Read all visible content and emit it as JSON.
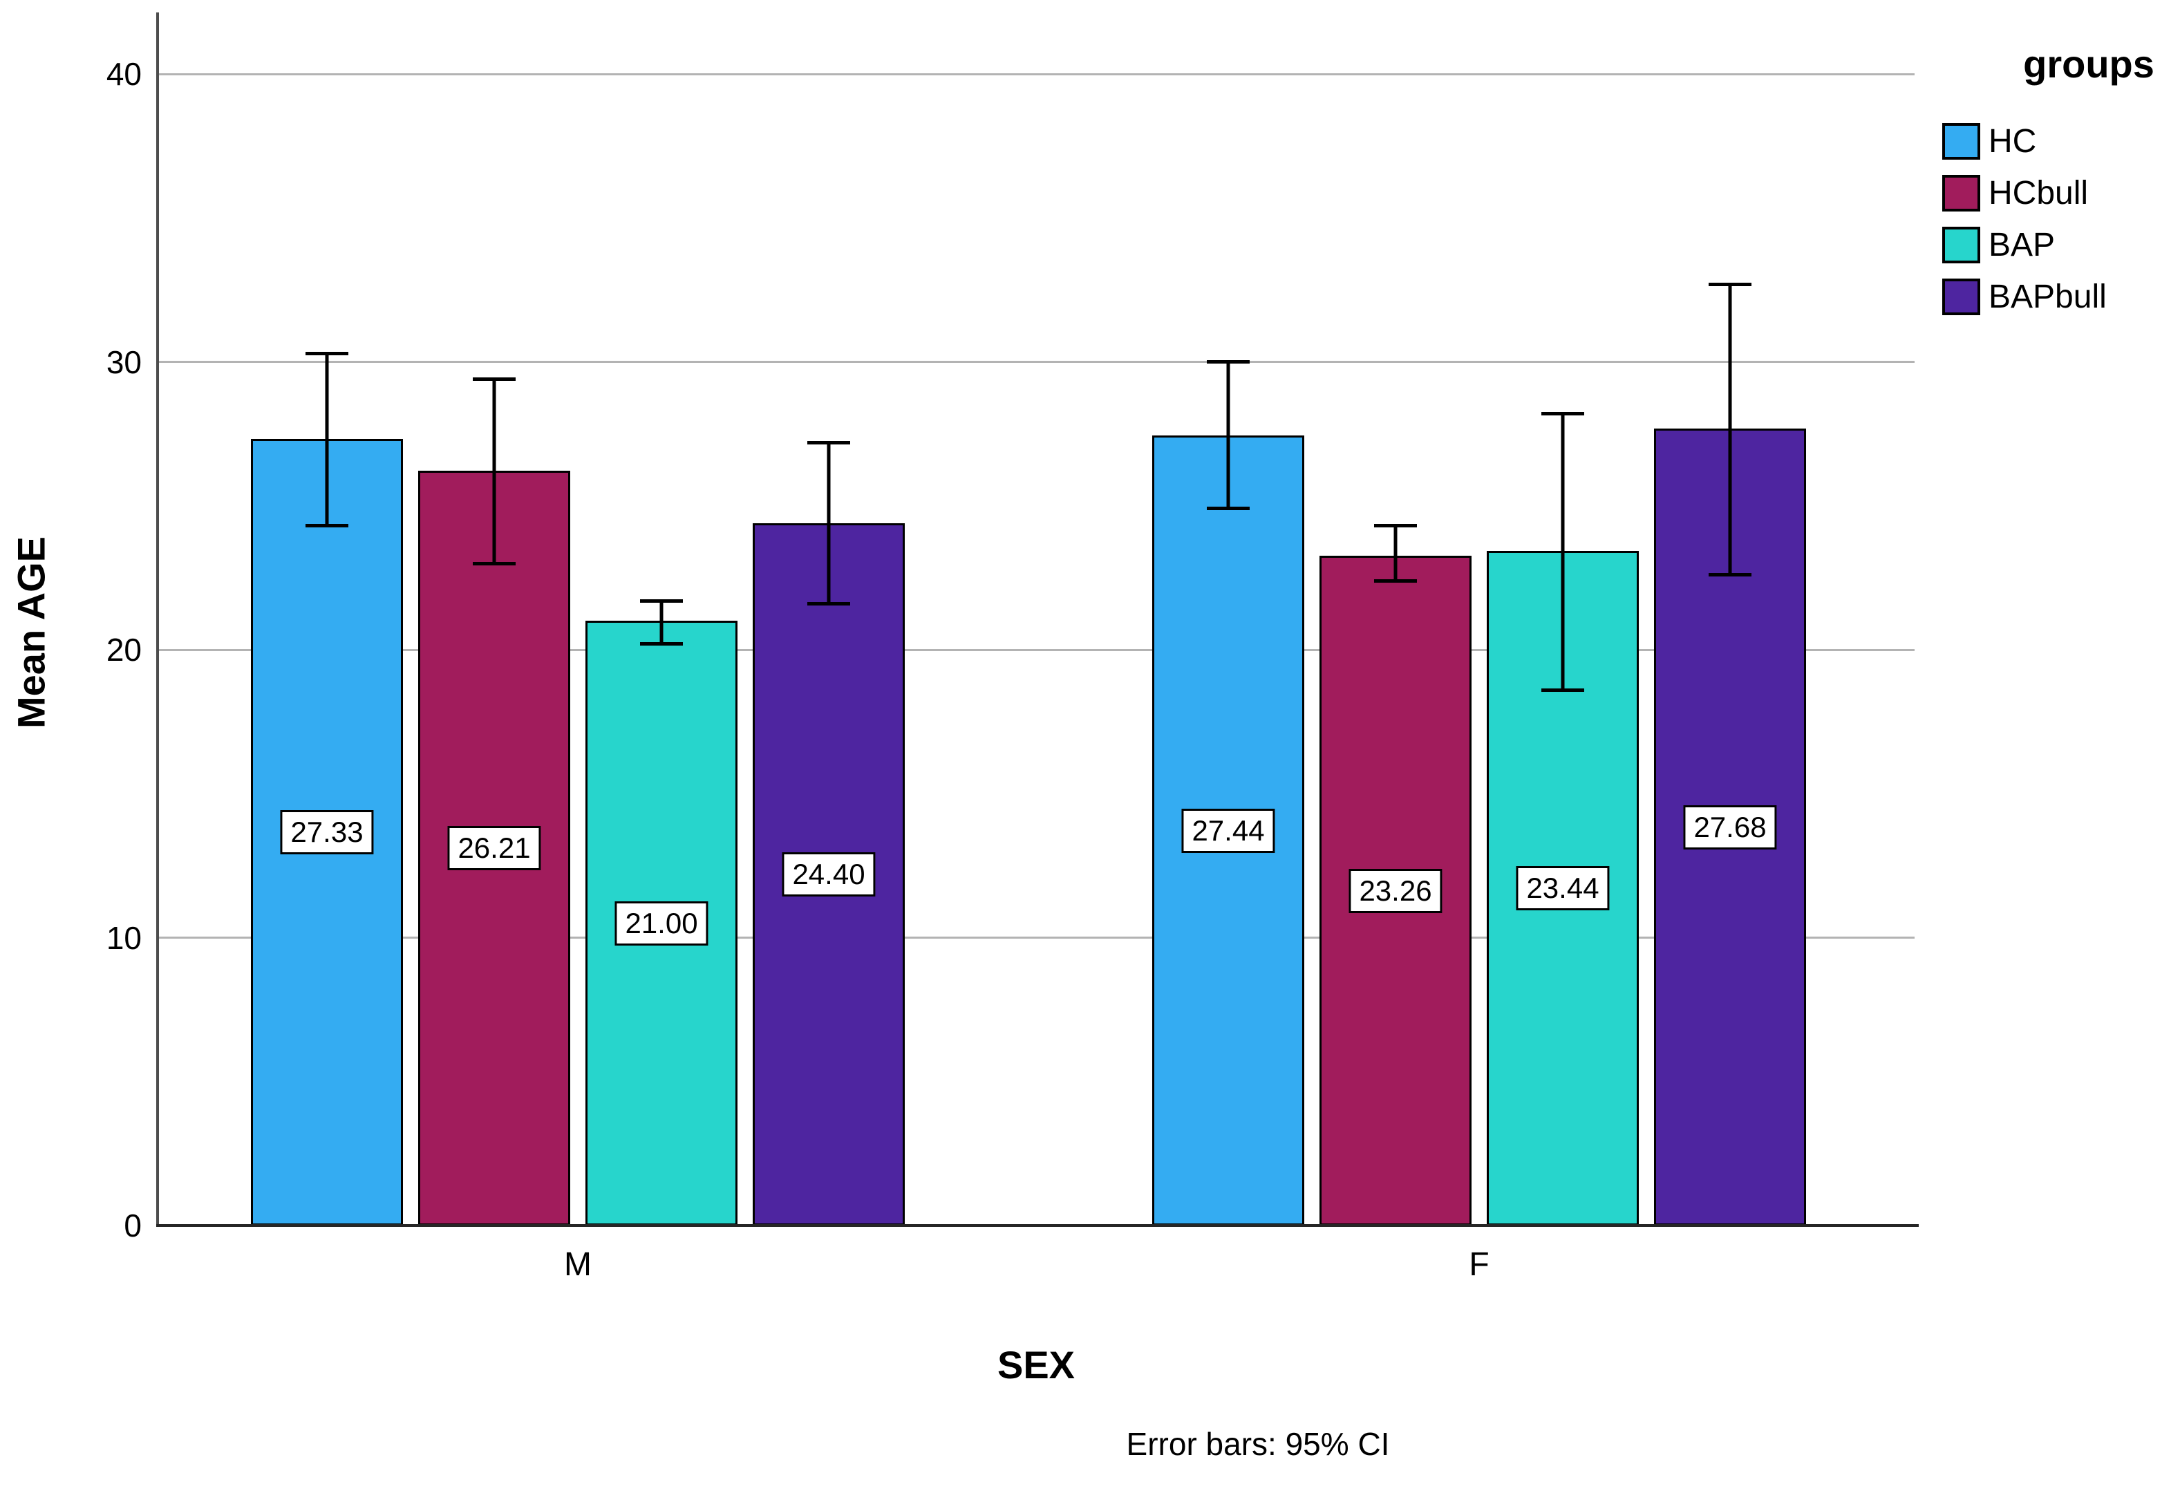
{
  "chart_data": {
    "type": "bar",
    "title": "",
    "xlabel": "SEX",
    "ylabel": "Mean AGE",
    "footnote": "Error bars: 95% CI",
    "legend_title": "groups",
    "legend_position": "top-right",
    "categories": [
      "M",
      "F"
    ],
    "y_ticks": [
      "0",
      "10",
      "20",
      "30",
      "40"
    ],
    "y_tick_values": [
      0,
      10,
      20,
      30,
      40
    ],
    "ylim": [
      0,
      42
    ],
    "grid": "horizontal",
    "error_bar_type": "95% CI",
    "series": [
      {
        "name": "HC",
        "color": "#34ACF2",
        "values": [
          27.33,
          27.44
        ],
        "labels": [
          "27.33",
          "27.44"
        ],
        "ci_low": [
          24.3,
          24.9
        ],
        "ci_high": [
          30.3,
          30.0
        ]
      },
      {
        "name": "HCbull",
        "color": "#A11C5C",
        "values": [
          26.21,
          23.26
        ],
        "labels": [
          "26.21",
          "23.26"
        ],
        "ci_low": [
          23.0,
          22.4
        ],
        "ci_high": [
          29.4,
          24.3
        ]
      },
      {
        "name": "BAP",
        "color": "#27D5CC",
        "values": [
          21.0,
          23.44
        ],
        "labels": [
          "21.00",
          "23.44"
        ],
        "ci_low": [
          20.2,
          18.6
        ],
        "ci_high": [
          21.7,
          28.2
        ]
      },
      {
        "name": "BAPbull",
        "color": "#4E25A0",
        "values": [
          24.4,
          27.68
        ],
        "labels": [
          "24.40",
          "27.68"
        ],
        "ci_low": [
          21.6,
          22.6
        ],
        "ci_high": [
          27.2,
          32.7
        ]
      }
    ],
    "colors": {
      "gridline": "#b3b3b3",
      "y_axis": "#4d4d4d",
      "x_axis": "#262626",
      "bar_border": "#000000",
      "error_bar": "#000000",
      "label_box_bg": "#ffffff",
      "label_box_border": "#000000"
    }
  }
}
